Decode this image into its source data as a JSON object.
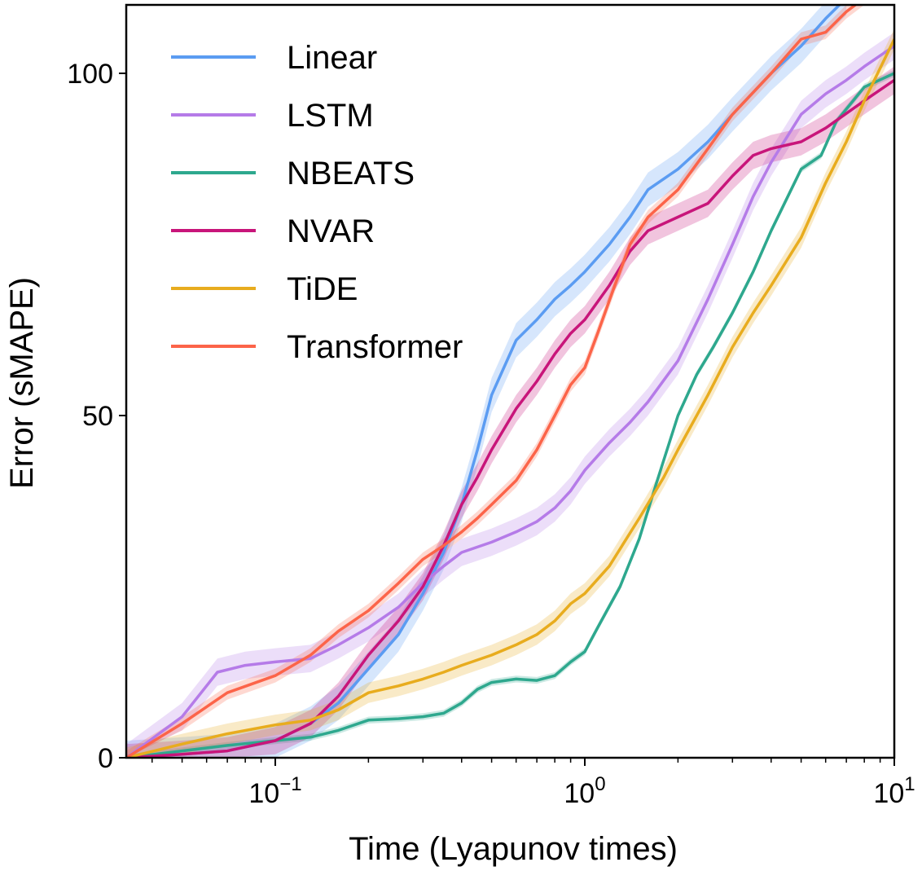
{
  "chart_data": {
    "type": "line",
    "title": "",
    "xlabel": "Time (Lyapunov times)",
    "ylabel": "Error (sMAPE)",
    "xscale": "log",
    "xlim": [
      0.033,
      10
    ],
    "ylim": [
      0,
      110
    ],
    "x_ticks": [
      {
        "value": 0.1,
        "base": "10",
        "exp": "−1"
      },
      {
        "value": 1,
        "base": "10",
        "exp": "0"
      },
      {
        "value": 10,
        "base": "10",
        "exp": "1"
      }
    ],
    "y_ticks": [
      {
        "value": 0,
        "label": "0"
      },
      {
        "value": 50,
        "label": "50"
      },
      {
        "value": 100,
        "label": "100"
      }
    ],
    "grid": false,
    "legend_position": "top-left",
    "series": [
      {
        "name": "Linear",
        "color": "#5b9cf2",
        "band": 2.5,
        "points": [
          [
            0.033,
            0
          ],
          [
            0.05,
            0.5
          ],
          [
            0.07,
            1
          ],
          [
            0.1,
            2.5
          ],
          [
            0.13,
            5
          ],
          [
            0.16,
            8
          ],
          [
            0.2,
            13
          ],
          [
            0.25,
            18
          ],
          [
            0.3,
            24
          ],
          [
            0.35,
            30
          ],
          [
            0.4,
            37
          ],
          [
            0.45,
            45
          ],
          [
            0.5,
            53
          ],
          [
            0.6,
            61
          ],
          [
            0.7,
            64
          ],
          [
            0.8,
            67
          ],
          [
            0.9,
            69
          ],
          [
            1.0,
            71
          ],
          [
            1.2,
            75
          ],
          [
            1.4,
            79
          ],
          [
            1.6,
            83
          ],
          [
            2.0,
            86
          ],
          [
            2.5,
            90
          ],
          [
            3.0,
            94
          ],
          [
            4.0,
            100
          ],
          [
            5.0,
            104
          ],
          [
            6.0,
            108
          ],
          [
            7.0,
            111
          ]
        ]
      },
      {
        "name": "LSTM",
        "color": "#b57be8",
        "band": 2.0,
        "points": [
          [
            0.033,
            0
          ],
          [
            0.05,
            6
          ],
          [
            0.065,
            12.5
          ],
          [
            0.08,
            13.5
          ],
          [
            0.1,
            14
          ],
          [
            0.13,
            14.5
          ],
          [
            0.16,
            16.5
          ],
          [
            0.2,
            19
          ],
          [
            0.25,
            22
          ],
          [
            0.3,
            25.5
          ],
          [
            0.35,
            28
          ],
          [
            0.4,
            30
          ],
          [
            0.5,
            31.5
          ],
          [
            0.6,
            33
          ],
          [
            0.7,
            34.5
          ],
          [
            0.8,
            36.5
          ],
          [
            0.9,
            39
          ],
          [
            1.0,
            42
          ],
          [
            1.2,
            46
          ],
          [
            1.4,
            49
          ],
          [
            1.6,
            52
          ],
          [
            2.0,
            58
          ],
          [
            2.5,
            67
          ],
          [
            3.0,
            75
          ],
          [
            3.5,
            82
          ],
          [
            4.0,
            87
          ],
          [
            5.0,
            94
          ],
          [
            6.0,
            97
          ],
          [
            7.0,
            99
          ],
          [
            8.0,
            101
          ],
          [
            10.0,
            104
          ]
        ]
      },
      {
        "name": "NBEATS",
        "color": "#2ea88e",
        "band": 0.5,
        "points": [
          [
            0.033,
            0
          ],
          [
            0.05,
            1
          ],
          [
            0.07,
            1.8
          ],
          [
            0.1,
            2.5
          ],
          [
            0.13,
            3
          ],
          [
            0.16,
            4
          ],
          [
            0.2,
            5.5
          ],
          [
            0.25,
            5.7
          ],
          [
            0.3,
            6
          ],
          [
            0.35,
            6.5
          ],
          [
            0.4,
            8
          ],
          [
            0.45,
            10
          ],
          [
            0.5,
            11
          ],
          [
            0.6,
            11.5
          ],
          [
            0.7,
            11.3
          ],
          [
            0.8,
            12
          ],
          [
            0.9,
            14
          ],
          [
            1.0,
            15.5
          ],
          [
            1.1,
            19
          ],
          [
            1.3,
            25
          ],
          [
            1.5,
            32
          ],
          [
            1.7,
            40
          ],
          [
            2.0,
            50
          ],
          [
            2.3,
            56
          ],
          [
            2.6,
            60
          ],
          [
            3.0,
            65
          ],
          [
            3.5,
            71
          ],
          [
            4.0,
            77
          ],
          [
            5.0,
            86
          ],
          [
            5.8,
            88
          ],
          [
            6.5,
            93
          ],
          [
            8.0,
            98
          ],
          [
            10.0,
            100
          ]
        ]
      },
      {
        "name": "NVAR",
        "color": "#c8157a",
        "band": 2.0,
        "points": [
          [
            0.033,
            0
          ],
          [
            0.05,
            0.5
          ],
          [
            0.07,
            1
          ],
          [
            0.1,
            2.5
          ],
          [
            0.13,
            5
          ],
          [
            0.16,
            9
          ],
          [
            0.2,
            15
          ],
          [
            0.25,
            20
          ],
          [
            0.3,
            25
          ],
          [
            0.35,
            31
          ],
          [
            0.4,
            37
          ],
          [
            0.45,
            41
          ],
          [
            0.5,
            45
          ],
          [
            0.6,
            51
          ],
          [
            0.7,
            55
          ],
          [
            0.8,
            59
          ],
          [
            0.9,
            62
          ],
          [
            1.0,
            64
          ],
          [
            1.2,
            69
          ],
          [
            1.4,
            74
          ],
          [
            1.6,
            77
          ],
          [
            2.0,
            79
          ],
          [
            2.5,
            81
          ],
          [
            3.0,
            85
          ],
          [
            3.5,
            88
          ],
          [
            4.0,
            89
          ],
          [
            5.0,
            90
          ],
          [
            6.0,
            92
          ],
          [
            8.0,
            96
          ],
          [
            10.0,
            99
          ]
        ]
      },
      {
        "name": "TiDE",
        "color": "#e8ac1e",
        "band": 1.5,
        "points": [
          [
            0.033,
            0
          ],
          [
            0.05,
            2
          ],
          [
            0.07,
            3.5
          ],
          [
            0.1,
            4.8
          ],
          [
            0.13,
            5.5
          ],
          [
            0.16,
            7
          ],
          [
            0.2,
            9.5
          ],
          [
            0.25,
            10.5
          ],
          [
            0.3,
            11.5
          ],
          [
            0.35,
            12.5
          ],
          [
            0.4,
            13.5
          ],
          [
            0.5,
            15
          ],
          [
            0.6,
            16.5
          ],
          [
            0.7,
            18
          ],
          [
            0.8,
            20
          ],
          [
            0.9,
            22.5
          ],
          [
            1.0,
            24
          ],
          [
            1.2,
            28
          ],
          [
            1.5,
            35
          ],
          [
            1.8,
            41
          ],
          [
            2.0,
            45
          ],
          [
            2.5,
            53
          ],
          [
            3.0,
            60
          ],
          [
            3.5,
            65
          ],
          [
            4.0,
            69
          ],
          [
            5.0,
            76
          ],
          [
            6.0,
            84
          ],
          [
            7.0,
            90
          ],
          [
            8.0,
            96
          ],
          [
            10.0,
            105
          ]
        ]
      },
      {
        "name": "Transformer",
        "color": "#fc6449",
        "band": 1.0,
        "points": [
          [
            0.033,
            0
          ],
          [
            0.05,
            5
          ],
          [
            0.07,
            9.5
          ],
          [
            0.1,
            12
          ],
          [
            0.13,
            15
          ],
          [
            0.16,
            18.5
          ],
          [
            0.2,
            21.5
          ],
          [
            0.25,
            25.5
          ],
          [
            0.3,
            29
          ],
          [
            0.35,
            31
          ],
          [
            0.4,
            33
          ],
          [
            0.45,
            35
          ],
          [
            0.5,
            37
          ],
          [
            0.6,
            40.5
          ],
          [
            0.7,
            45
          ],
          [
            0.8,
            50
          ],
          [
            0.9,
            54.5
          ],
          [
            1.0,
            57
          ],
          [
            1.1,
            62
          ],
          [
            1.25,
            69
          ],
          [
            1.4,
            75
          ],
          [
            1.6,
            79
          ],
          [
            2.0,
            83
          ],
          [
            2.5,
            89
          ],
          [
            3.0,
            94
          ],
          [
            4.0,
            100
          ],
          [
            5.0,
            105
          ],
          [
            6.0,
            106
          ],
          [
            7.0,
            109
          ],
          [
            8.0,
            111
          ]
        ]
      }
    ]
  }
}
